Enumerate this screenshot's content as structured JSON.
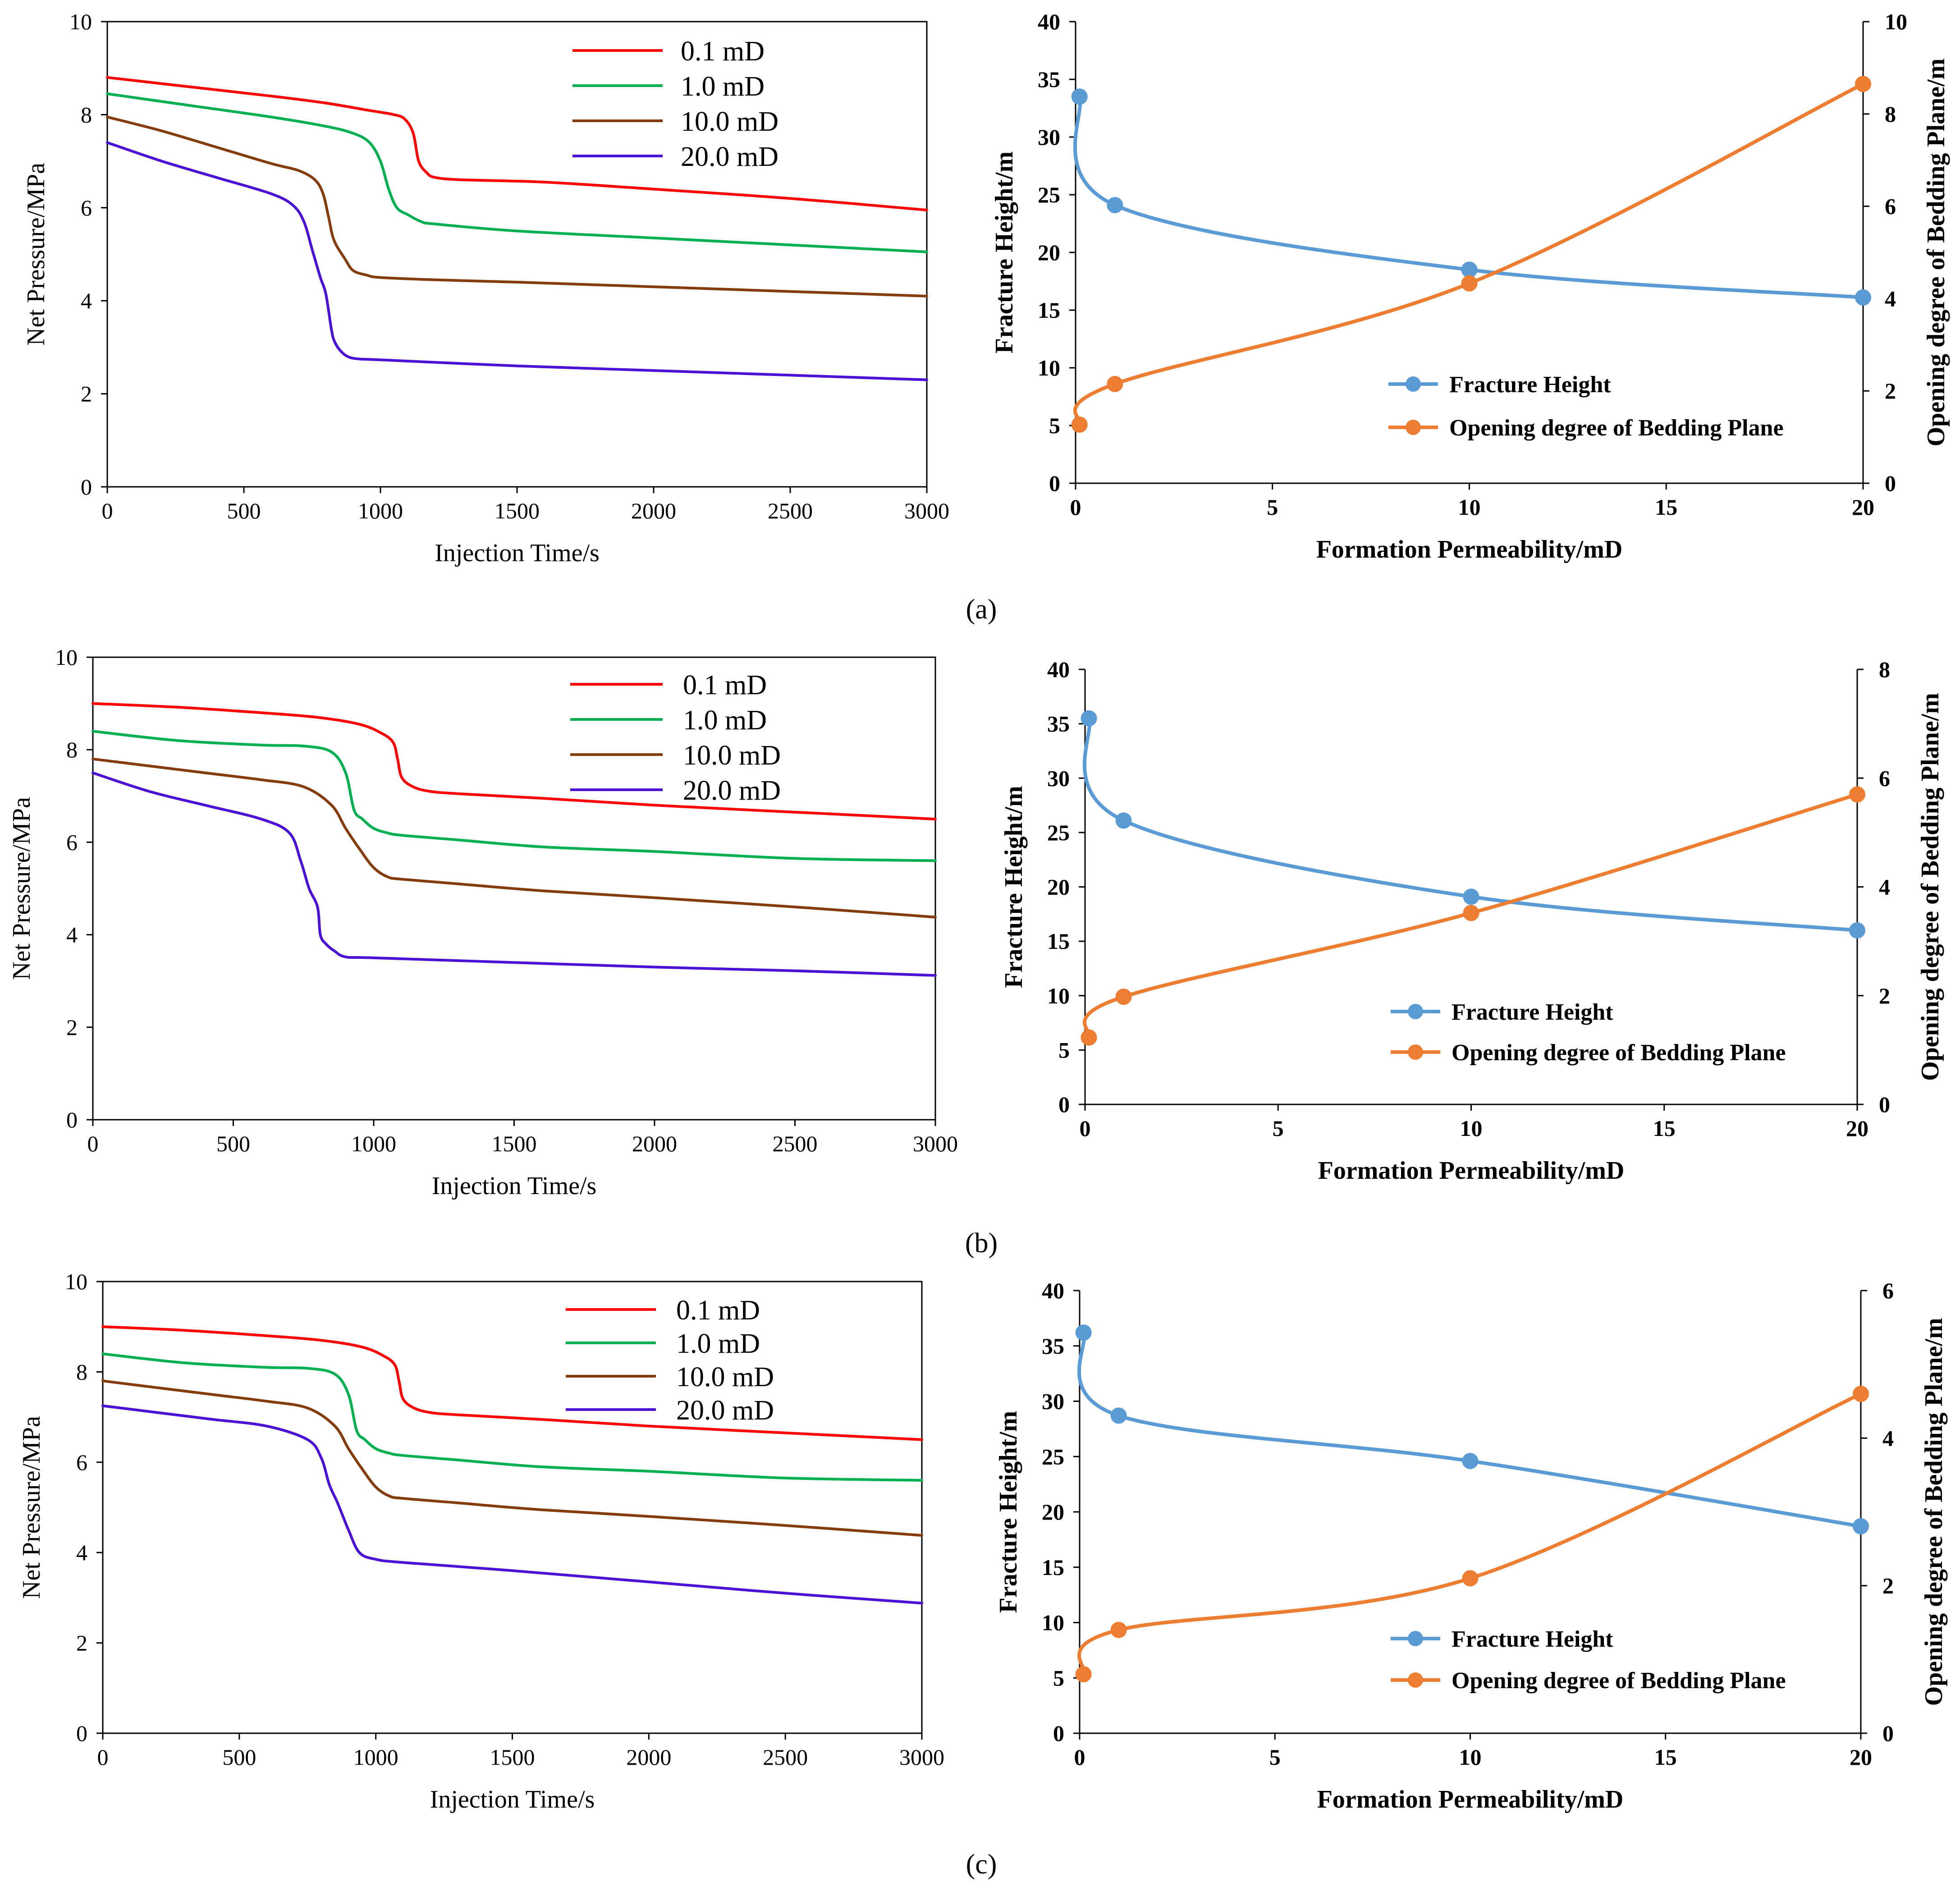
{
  "colors": {
    "red": "#ff0000",
    "green": "#00b050",
    "brown": "#843c0c",
    "purple": "#4b12d6",
    "blue": "#5b9bd5",
    "orange": "#ed7d31"
  },
  "captions": [
    "(a)",
    "(b)",
    "(c)"
  ],
  "chart_data": [
    {
      "id": "a-left",
      "type": "line",
      "xlabel": "Injection Time/s",
      "ylabel": "Net Pressure/MPa",
      "xlim": [
        0,
        3000
      ],
      "ylim": [
        0,
        10
      ],
      "xticks": [
        "0",
        "500",
        "1000",
        "1500",
        "2000",
        "2500",
        "3000"
      ],
      "yticks": [
        "0",
        "2",
        "4",
        "6",
        "8",
        "10"
      ],
      "series": [
        {
          "name": "0.1 mD",
          "color": "red",
          "x": [
            0,
            300,
            600,
            800,
            950,
            1050,
            1090,
            1120,
            1140,
            1170,
            1200,
            1300,
            1600,
            2000,
            2500,
            3000
          ],
          "y": [
            8.8,
            8.6,
            8.4,
            8.25,
            8.1,
            8.0,
            7.9,
            7.6,
            7.0,
            6.75,
            6.65,
            6.6,
            6.55,
            6.4,
            6.2,
            5.95
          ]
        },
        {
          "name": "1.0 mD",
          "color": "green",
          "x": [
            0,
            300,
            600,
            800,
            900,
            960,
            1000,
            1030,
            1060,
            1100,
            1150,
            1200,
            1500,
            2000,
            2500,
            3000
          ],
          "y": [
            8.45,
            8.2,
            7.95,
            7.75,
            7.6,
            7.4,
            7.0,
            6.4,
            6.0,
            5.85,
            5.7,
            5.65,
            5.5,
            5.35,
            5.2,
            5.05
          ]
        },
        {
          "name": "10.0 mD",
          "color": "brown",
          "x": [
            0,
            200,
            400,
            600,
            700,
            760,
            790,
            810,
            830,
            870,
            900,
            950,
            1000,
            1200,
            1500,
            2000,
            2500,
            3000
          ],
          "y": [
            7.95,
            7.65,
            7.3,
            6.95,
            6.8,
            6.6,
            6.3,
            5.8,
            5.3,
            4.9,
            4.65,
            4.55,
            4.5,
            4.45,
            4.4,
            4.3,
            4.2,
            4.1
          ]
        },
        {
          "name": "20.0 mD",
          "color": "purple",
          "x": [
            0,
            200,
            400,
            600,
            680,
            720,
            750,
            780,
            800,
            820,
            830,
            850,
            880,
            920,
            1000,
            1500,
            2000,
            2500,
            3000
          ],
          "y": [
            7.4,
            7.0,
            6.65,
            6.3,
            6.05,
            5.7,
            5.1,
            4.5,
            4.15,
            3.4,
            3.15,
            2.95,
            2.8,
            2.75,
            2.73,
            2.6,
            2.5,
            2.4,
            2.3
          ]
        }
      ]
    },
    {
      "id": "a-right",
      "type": "line",
      "xlabel": "Formation Permeability/mD",
      "ylabel": "Fracture Height/m",
      "y2label": "Opening degree of Bedding Plane/m",
      "xlim": [
        0,
        20
      ],
      "ylim": [
        0,
        40
      ],
      "y2lim": [
        0,
        10
      ],
      "xticks": [
        "0",
        "5",
        "10",
        "15",
        "20"
      ],
      "yticks": [
        "0",
        "5",
        "10",
        "15",
        "20",
        "25",
        "30",
        "35",
        "40"
      ],
      "y2ticks": [
        "0",
        "2",
        "4",
        "6",
        "8",
        "10"
      ],
      "series": [
        {
          "name": "Fracture Height",
          "color": "blue",
          "axis": "left",
          "x": [
            0.1,
            1,
            10,
            20
          ],
          "y": [
            33.5,
            24.1,
            18.5,
            16.1
          ]
        },
        {
          "name": "Opening degree of Bedding Plane",
          "color": "orange",
          "axis": "right",
          "x": [
            0.1,
            1,
            10,
            20
          ],
          "y": [
            1.27,
            2.15,
            4.33,
            8.65
          ]
        }
      ]
    },
    {
      "id": "b-left",
      "type": "line",
      "xlabel": "Injection Time/s",
      "ylabel": "Net Pressure/MPa",
      "xlim": [
        0,
        3000
      ],
      "ylim": [
        0,
        10
      ],
      "xticks": [
        "0",
        "500",
        "1000",
        "1500",
        "2000",
        "2500",
        "3000"
      ],
      "yticks": [
        "0",
        "2",
        "4",
        "6",
        "8",
        "10"
      ],
      "series": [
        {
          "name": "0.1 mD",
          "color": "red",
          "x": [
            0,
            300,
            600,
            800,
            950,
            1030,
            1070,
            1085,
            1100,
            1140,
            1200,
            1300,
            1600,
            2000,
            2500,
            3000
          ],
          "y": [
            9.0,
            8.92,
            8.8,
            8.7,
            8.55,
            8.35,
            8.15,
            7.8,
            7.4,
            7.2,
            7.1,
            7.05,
            6.95,
            6.8,
            6.65,
            6.5
          ]
        },
        {
          "name": "1.0 mD",
          "color": "green",
          "x": [
            0,
            300,
            600,
            750,
            850,
            900,
            930,
            960,
            1000,
            1050,
            1100,
            1300,
            1600,
            2000,
            2500,
            3000
          ],
          "y": [
            8.4,
            8.2,
            8.1,
            8.08,
            7.95,
            7.5,
            6.7,
            6.5,
            6.3,
            6.2,
            6.15,
            6.05,
            5.9,
            5.8,
            5.65,
            5.6
          ]
        },
        {
          "name": "10.0 mD",
          "color": "brown",
          "x": [
            0,
            200,
            400,
            600,
            750,
            850,
            900,
            950,
            1000,
            1050,
            1100,
            1300,
            1600,
            2000,
            2500,
            3000
          ],
          "y": [
            7.8,
            7.65,
            7.5,
            7.35,
            7.2,
            6.8,
            6.3,
            5.85,
            5.45,
            5.25,
            5.2,
            5.1,
            4.95,
            4.8,
            4.6,
            4.38
          ]
        },
        {
          "name": "20.0 mD",
          "color": "purple",
          "x": [
            0,
            200,
            400,
            600,
            700,
            740,
            770,
            800,
            810,
            830,
            860,
            900,
            1000,
            1500,
            2000,
            2500,
            3000
          ],
          "y": [
            7.5,
            7.1,
            6.8,
            6.5,
            6.2,
            5.6,
            5.0,
            4.6,
            4.0,
            3.8,
            3.65,
            3.52,
            3.5,
            3.4,
            3.3,
            3.22,
            3.12
          ]
        }
      ]
    },
    {
      "id": "b-right",
      "type": "line",
      "xlabel": "Formation Permeability/mD",
      "ylabel": "Fracture Height/m",
      "y2label": "Opening degree of Bedding Plane/m",
      "xlim": [
        0,
        20
      ],
      "ylim": [
        0,
        40
      ],
      "y2lim": [
        0,
        8
      ],
      "xticks": [
        "0",
        "5",
        "10",
        "15",
        "20"
      ],
      "yticks": [
        "0",
        "5",
        "10",
        "15",
        "20",
        "25",
        "30",
        "35",
        "40"
      ],
      "y2ticks": [
        "0",
        "2",
        "4",
        "6",
        "8"
      ],
      "series": [
        {
          "name": "Fracture Height",
          "color": "blue",
          "axis": "left",
          "x": [
            0.1,
            1,
            10,
            20
          ],
          "y": [
            35.5,
            26.1,
            19.1,
            16.0
          ]
        },
        {
          "name": "Opening degree of Bedding Plane",
          "color": "orange",
          "axis": "right",
          "x": [
            0.1,
            1,
            10,
            20
          ],
          "y": [
            1.23,
            1.98,
            3.52,
            5.7
          ]
        }
      ]
    },
    {
      "id": "c-left",
      "type": "line",
      "xlabel": "Injection Time/s",
      "ylabel": "Net Pressure/MPa",
      "xlim": [
        0,
        3000
      ],
      "ylim": [
        0,
        10
      ],
      "xticks": [
        "0",
        "500",
        "1000",
        "1500",
        "2000",
        "2500",
        "3000"
      ],
      "yticks": [
        "0",
        "2",
        "4",
        "6",
        "8",
        "10"
      ],
      "series": [
        {
          "name": "0.1 mD",
          "color": "red",
          "x": [
            0,
            300,
            600,
            800,
            950,
            1030,
            1070,
            1085,
            1100,
            1140,
            1200,
            1300,
            1600,
            2000,
            2500,
            3000
          ],
          "y": [
            9.0,
            8.92,
            8.8,
            8.7,
            8.55,
            8.35,
            8.15,
            7.8,
            7.4,
            7.2,
            7.1,
            7.05,
            6.95,
            6.8,
            6.65,
            6.5
          ]
        },
        {
          "name": "1.0 mD",
          "color": "green",
          "x": [
            0,
            300,
            600,
            750,
            850,
            900,
            930,
            960,
            1000,
            1050,
            1100,
            1300,
            1600,
            2000,
            2500,
            3000
          ],
          "y": [
            8.4,
            8.2,
            8.1,
            8.08,
            7.95,
            7.5,
            6.7,
            6.5,
            6.3,
            6.2,
            6.15,
            6.05,
            5.9,
            5.8,
            5.65,
            5.6
          ]
        },
        {
          "name": "10.0 mD",
          "color": "brown",
          "x": [
            0,
            200,
            400,
            600,
            750,
            850,
            900,
            950,
            1000,
            1050,
            1100,
            1300,
            1600,
            2000,
            2500,
            3000
          ],
          "y": [
            7.8,
            7.65,
            7.5,
            7.35,
            7.2,
            6.8,
            6.3,
            5.85,
            5.45,
            5.25,
            5.2,
            5.1,
            4.95,
            4.8,
            4.6,
            4.38
          ]
        },
        {
          "name": "20.0 mD",
          "color": "purple",
          "x": [
            0,
            200,
            400,
            600,
            750,
            800,
            830,
            860,
            900,
            940,
            1000,
            1100,
            1500,
            2000,
            2500,
            3000
          ],
          "y": [
            7.25,
            7.1,
            6.95,
            6.8,
            6.5,
            6.1,
            5.5,
            5.1,
            4.5,
            4.0,
            3.85,
            3.78,
            3.6,
            3.35,
            3.1,
            2.88
          ]
        }
      ]
    },
    {
      "id": "c-right",
      "type": "line",
      "xlabel": "Formation Permeability/mD",
      "ylabel": "Fracture Height/m",
      "y2label": "Opening degree of Bedding Plane/m",
      "xlim": [
        0,
        20
      ],
      "ylim": [
        0,
        40
      ],
      "y2lim": [
        0,
        6
      ],
      "xticks": [
        "0",
        "5",
        "10",
        "15",
        "20"
      ],
      "yticks": [
        "0",
        "5",
        "10",
        "15",
        "20",
        "25",
        "30",
        "35",
        "40"
      ],
      "y2ticks": [
        "0",
        "2",
        "4",
        "6"
      ],
      "series": [
        {
          "name": "Fracture Height",
          "color": "blue",
          "axis": "left",
          "x": [
            0.1,
            1,
            10,
            20
          ],
          "y": [
            36.2,
            28.7,
            24.6,
            18.7
          ]
        },
        {
          "name": "Opening degree of Bedding Plane",
          "color": "orange",
          "axis": "right",
          "x": [
            0.1,
            1,
            10,
            20
          ],
          "y": [
            0.8,
            1.4,
            2.1,
            4.6
          ]
        }
      ]
    }
  ]
}
